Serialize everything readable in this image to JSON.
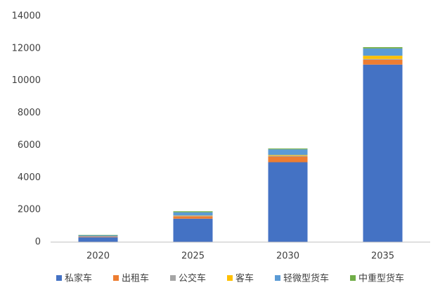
{
  "chart_data": {
    "type": "stacked_bar",
    "categories": [
      "2020",
      "2025",
      "2030",
      "2035"
    ],
    "series": [
      {
        "name": "私家车",
        "color": "#4472c4",
        "values": [
          300,
          1450,
          4950,
          11000
        ]
      },
      {
        "name": "出租车",
        "color": "#ed7d31",
        "values": [
          40,
          150,
          350,
          300
        ]
      },
      {
        "name": "公交车",
        "color": "#a5a5a5",
        "values": [
          10,
          30,
          50,
          50
        ]
      },
      {
        "name": "客车",
        "color": "#ffc000",
        "values": [
          5,
          20,
          50,
          200
        ]
      },
      {
        "name": "轻微型货车",
        "color": "#5b9bd5",
        "values": [
          60,
          200,
          350,
          450
        ]
      },
      {
        "name": "中重型货车",
        "color": "#70ad47",
        "values": [
          30,
          60,
          50,
          80
        ]
      }
    ],
    "ylim": [
      0,
      14000
    ],
    "yticks": [
      0,
      2000,
      4000,
      6000,
      8000,
      10000,
      12000,
      14000
    ],
    "grid": false,
    "legend": "bottom"
  }
}
